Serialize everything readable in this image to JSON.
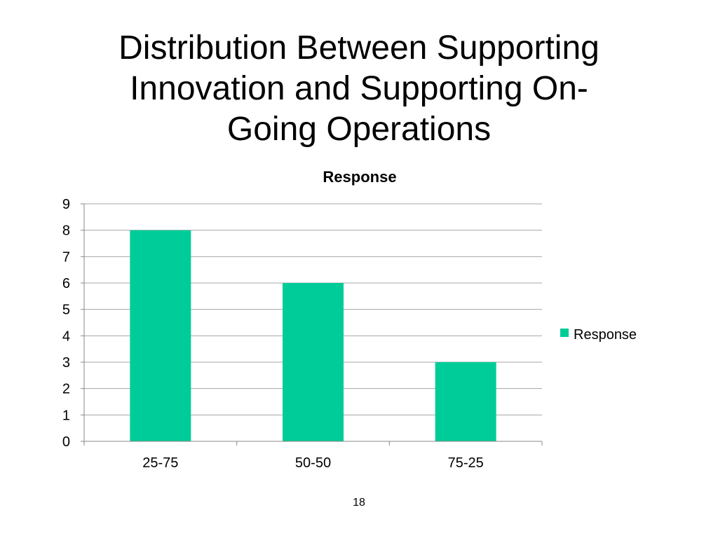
{
  "slide": {
    "title_lines": [
      "Distribution Between Supporting",
      "Innovation and Supporting On-",
      "Going Operations"
    ],
    "page_number": "18"
  },
  "chart_data": {
    "type": "bar",
    "title": "Response",
    "categories": [
      "25-75",
      "50-50",
      "75-25"
    ],
    "series": [
      {
        "name": "Response",
        "values": [
          8,
          6,
          3
        ],
        "color": "#00CC99"
      }
    ],
    "ylim": [
      0,
      9
    ],
    "yticks": [
      0,
      1,
      2,
      3,
      4,
      5,
      6,
      7,
      8,
      9
    ],
    "grid": true,
    "legend": "right"
  }
}
